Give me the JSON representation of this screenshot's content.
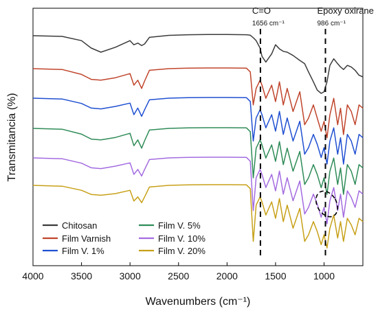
{
  "chart_data": {
    "type": "line",
    "xlabel": "Wavenumbers (cm⁻¹)",
    "ylabel": "Transmitancia (%)",
    "xlim": [
      4000,
      600
    ],
    "x_ticks": [
      "4000",
      "3500",
      "3000",
      "2500",
      "2000",
      "1500",
      "1000"
    ],
    "x_tick_values": [
      4000,
      3500,
      3000,
      2500,
      2000,
      1500,
      1000
    ],
    "y_ticks_shown": false,
    "grid": false,
    "legend_position": "bottom-left",
    "x": [
      4000,
      3700,
      3500,
      3400,
      3300,
      3150,
      3000,
      2960,
      2920,
      2880,
      2850,
      2800,
      2600,
      2400,
      2200,
      2000,
      1800,
      1760,
      1730,
      1700,
      1660,
      1640,
      1600,
      1540,
      1500,
      1460,
      1420,
      1380,
      1320,
      1250,
      1200,
      1160,
      1110,
      1070,
      1030,
      1000,
      970,
      940,
      900,
      860,
      830,
      800,
      760,
      720,
      680,
      640,
      600
    ],
    "series": [
      {
        "name": "Chitosan",
        "color": "#3a3a3a",
        "values": [
          0.0,
          -0.4,
          -3.0,
          -7.5,
          -10.0,
          -7.0,
          -3.0,
          -5.5,
          -4.5,
          -6.0,
          -5.0,
          -1.0,
          0.2,
          0.6,
          0.7,
          0.7,
          0.6,
          0.3,
          -1.2,
          -3.0,
          -7.5,
          -12.5,
          -16.0,
          -11.0,
          -5.5,
          -8.0,
          -9.5,
          -10.0,
          -12.0,
          -15.0,
          -17.0,
          -22.0,
          -28.0,
          -33.0,
          -35.0,
          -34.0,
          -28.0,
          -18.0,
          -14.0,
          -17.0,
          -19.0,
          -20.5,
          -18.0,
          -19.0,
          -21.0,
          -24.0,
          -25.0
        ]
      },
      {
        "name": "Film Varnish",
        "color": "#c0442b",
        "values": [
          0.0,
          -0.5,
          -3.5,
          -6.5,
          -7.0,
          -5.5,
          -3.0,
          -10.0,
          -7.0,
          -12.0,
          -7.5,
          -1.0,
          0.0,
          0.3,
          0.4,
          0.4,
          0.3,
          -2.0,
          -22.0,
          -12.0,
          -7.0,
          -10.0,
          -18.0,
          -10.0,
          -20.0,
          -8.0,
          -22.0,
          -12.0,
          -26.0,
          -14.0,
          -34.0,
          -30.0,
          -22.0,
          -30.0,
          -38.0,
          -32.0,
          -42.0,
          -28.0,
          -18.0,
          -34.0,
          -24.0,
          -40.0,
          -22.0,
          -26.0,
          -34.0,
          -22.0,
          -24.0
        ]
      },
      {
        "name": "Film V. 1%",
        "color": "#1f4fd1",
        "values": [
          0.0,
          -0.5,
          -3.2,
          -6.0,
          -6.5,
          -5.0,
          -3.0,
          -10.0,
          -6.0,
          -11.0,
          -7.0,
          -1.0,
          0.0,
          0.3,
          0.4,
          0.4,
          0.3,
          -2.0,
          -26.0,
          -12.0,
          -7.0,
          -10.0,
          -18.0,
          -10.0,
          -20.0,
          -8.0,
          -22.0,
          -12.0,
          -26.0,
          -14.0,
          -34.0,
          -30.0,
          -22.0,
          -28.0,
          -36.0,
          -30.0,
          -40.0,
          -26.0,
          -18.0,
          -34.0,
          -24.0,
          -40.0,
          -22.0,
          -26.0,
          -34.0,
          -22.0,
          -24.0
        ]
      },
      {
        "name": "Film V. 5%",
        "color": "#2e8b57",
        "values": [
          0.0,
          -0.5,
          -3.5,
          -6.5,
          -7.0,
          -5.5,
          -3.0,
          -10.5,
          -7.0,
          -12.0,
          -7.5,
          -1.0,
          0.0,
          0.3,
          0.4,
          0.4,
          0.3,
          -2.0,
          -30.0,
          -12.0,
          -7.0,
          -10.0,
          -18.0,
          -10.0,
          -20.0,
          -8.0,
          -22.0,
          -12.0,
          -26.0,
          -14.0,
          -34.0,
          -30.0,
          -22.0,
          -28.0,
          -36.0,
          -30.0,
          -40.0,
          -26.0,
          -18.0,
          -34.0,
          -24.0,
          -40.0,
          -22.0,
          -26.0,
          -34.0,
          -22.0,
          -24.0
        ]
      },
      {
        "name": "Film V. 10%",
        "color": "#a36be0",
        "values": [
          0.0,
          -0.5,
          -3.2,
          -6.0,
          -6.5,
          -5.0,
          -3.0,
          -10.0,
          -7.0,
          -11.0,
          -7.0,
          -1.0,
          0.0,
          0.3,
          0.4,
          0.4,
          0.3,
          -2.0,
          -32.0,
          -12.0,
          -7.0,
          -10.0,
          -18.0,
          -10.0,
          -20.0,
          -8.0,
          -22.0,
          -12.0,
          -26.0,
          -14.0,
          -34.0,
          -30.0,
          -22.0,
          -28.0,
          -36.0,
          -30.0,
          -40.0,
          -26.0,
          -18.0,
          -32.0,
          -22.0,
          -36.0,
          -20.0,
          -24.0,
          -30.0,
          -20.0,
          -22.0
        ]
      },
      {
        "name": "Film V. 20%",
        "color": "#c7a017",
        "values": [
          0.0,
          -0.5,
          -3.0,
          -5.5,
          -6.0,
          -5.0,
          -3.0,
          -9.5,
          -7.0,
          -10.5,
          -7.0,
          -1.0,
          0.0,
          0.3,
          0.4,
          0.4,
          0.3,
          -2.0,
          -34.0,
          -12.0,
          -7.0,
          -10.0,
          -18.0,
          -10.0,
          -20.0,
          -8.0,
          -22.0,
          -12.0,
          -26.0,
          -14.0,
          -34.0,
          -30.0,
          -22.0,
          -28.0,
          -36.0,
          -30.0,
          -38.0,
          -26.0,
          -18.0,
          -32.0,
          -22.0,
          -34.0,
          -20.0,
          -24.0,
          -30.0,
          -20.0,
          -22.0
        ]
      }
    ],
    "annotations": [
      {
        "label": "C=O",
        "sublabel": "1656 cm⁻¹",
        "x": 1656
      },
      {
        "label": "Epoxy oxirane",
        "sublabel": "986 cm⁻¹",
        "x": 986
      }
    ]
  }
}
